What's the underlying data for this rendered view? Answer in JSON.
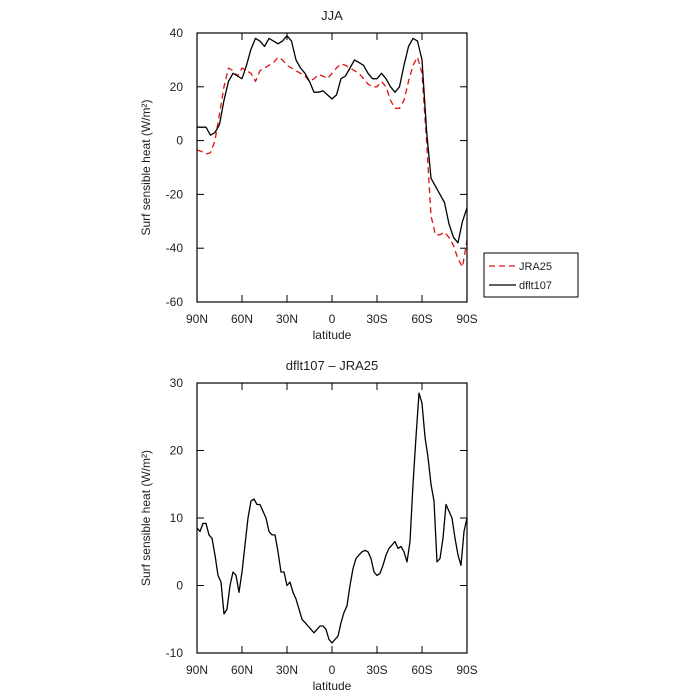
{
  "chart_data": [
    {
      "type": "line",
      "title": "JJA",
      "xlabel": "latitude",
      "ylabel": "Surf sensible heat (W/m²)",
      "xlim": [
        90,
        -90
      ],
      "ylim": [
        -60,
        40
      ],
      "yticks": [
        -60,
        -40,
        -20,
        0,
        20,
        40
      ],
      "xticks": [
        {
          "value": 90,
          "label": "90N"
        },
        {
          "value": 60,
          "label": "60N"
        },
        {
          "value": 30,
          "label": "30N"
        },
        {
          "value": 0,
          "label": "0"
        },
        {
          "value": -30,
          "label": "30S"
        },
        {
          "value": -60,
          "label": "60S"
        },
        {
          "value": -90,
          "label": "90S"
        }
      ],
      "legend": {
        "position": "right",
        "entries": [
          "JRA25",
          "dflt107"
        ]
      },
      "series": [
        {
          "name": "JRA25",
          "color": "#e01010",
          "dashed": true,
          "points": [
            [
              90,
              -3.5
            ],
            [
              87,
              -4
            ],
            [
              84,
              -5
            ],
            [
              81,
              -4.5
            ],
            [
              78,
              0
            ],
            [
              75,
              10
            ],
            [
              72,
              20
            ],
            [
              69,
              27
            ],
            [
              66,
              26
            ],
            [
              63,
              24
            ],
            [
              60,
              27
            ],
            [
              57,
              26
            ],
            [
              54,
              25
            ],
            [
              51,
              22
            ],
            [
              48,
              26
            ],
            [
              45,
              27
            ],
            [
              42,
              28
            ],
            [
              39,
              29
            ],
            [
              36,
              31
            ],
            [
              33,
              30
            ],
            [
              30,
              28
            ],
            [
              27,
              27
            ],
            [
              24,
              26
            ],
            [
              21,
              25
            ],
            [
              18,
              24
            ],
            [
              15,
              22
            ],
            [
              12,
              23
            ],
            [
              9,
              24.5
            ],
            [
              6,
              24
            ],
            [
              3,
              23
            ],
            [
              0,
              25
            ],
            [
              -3,
              27
            ],
            [
              -6,
              28.5
            ],
            [
              -9,
              28
            ],
            [
              -12,
              27
            ],
            [
              -15,
              26
            ],
            [
              -18,
              25
            ],
            [
              -21,
              23
            ],
            [
              -24,
              21
            ],
            [
              -27,
              20
            ],
            [
              -30,
              20
            ],
            [
              -33,
              22
            ],
            [
              -36,
              20
            ],
            [
              -39,
              15
            ],
            [
              -42,
              12
            ],
            [
              -45,
              12
            ],
            [
              -48,
              15
            ],
            [
              -51,
              22
            ],
            [
              -54,
              28
            ],
            [
              -57,
              31
            ],
            [
              -60,
              25
            ],
            [
              -63,
              0
            ],
            [
              -66,
              -28
            ],
            [
              -69,
              -35
            ],
            [
              -72,
              -35
            ],
            [
              -75,
              -34
            ],
            [
              -78,
              -36
            ],
            [
              -81,
              -39
            ],
            [
              -84,
              -44
            ],
            [
              -87,
              -47
            ],
            [
              -90,
              -37
            ]
          ]
        },
        {
          "name": "dflt107",
          "color": "#000000",
          "dashed": false,
          "points": [
            [
              90,
              5
            ],
            [
              87,
              5
            ],
            [
              84,
              5
            ],
            [
              81,
              2
            ],
            [
              78,
              3
            ],
            [
              75,
              6
            ],
            [
              72,
              15
            ],
            [
              69,
              22
            ],
            [
              66,
              25
            ],
            [
              63,
              24
            ],
            [
              60,
              23
            ],
            [
              57,
              28
            ],
            [
              54,
              34
            ],
            [
              51,
              38
            ],
            [
              48,
              37
            ],
            [
              45,
              35
            ],
            [
              42,
              38
            ],
            [
              39,
              37
            ],
            [
              36,
              36
            ],
            [
              33,
              37
            ],
            [
              30,
              39
            ],
            [
              27,
              37
            ],
            [
              24,
              30
            ],
            [
              21,
              27
            ],
            [
              18,
              25
            ],
            [
              15,
              22
            ],
            [
              12,
              18
            ],
            [
              9,
              18
            ],
            [
              6,
              18.5
            ],
            [
              3,
              17
            ],
            [
              0,
              15.5
            ],
            [
              -3,
              17
            ],
            [
              -6,
              23
            ],
            [
              -9,
              24
            ],
            [
              -12,
              27
            ],
            [
              -15,
              30
            ],
            [
              -18,
              29
            ],
            [
              -21,
              28
            ],
            [
              -24,
              25
            ],
            [
              -27,
              23
            ],
            [
              -30,
              23
            ],
            [
              -33,
              25
            ],
            [
              -36,
              23
            ],
            [
              -39,
              20
            ],
            [
              -42,
              18
            ],
            [
              -45,
              20
            ],
            [
              -48,
              28
            ],
            [
              -51,
              35
            ],
            [
              -54,
              38
            ],
            [
              -57,
              37
            ],
            [
              -60,
              30
            ],
            [
              -63,
              4
            ],
            [
              -66,
              -14
            ],
            [
              -69,
              -17
            ],
            [
              -72,
              -20
            ],
            [
              -75,
              -23
            ],
            [
              -78,
              -31
            ],
            [
              -81,
              -36
            ],
            [
              -84,
              -38
            ],
            [
              -87,
              -30
            ],
            [
              -90,
              -25
            ]
          ]
        }
      ]
    },
    {
      "type": "line",
      "title": "dflt107 – JRA25",
      "xlabel": "latitude",
      "ylabel": "Surf sensible heat (W/m²)",
      "xlim": [
        90,
        -90
      ],
      "ylim": [
        -10,
        30
      ],
      "yticks": [
        -10,
        0,
        10,
        20,
        30
      ],
      "xticks": [
        {
          "value": 90,
          "label": "90N"
        },
        {
          "value": 60,
          "label": "60N"
        },
        {
          "value": 30,
          "label": "30N"
        },
        {
          "value": 0,
          "label": "0"
        },
        {
          "value": -30,
          "label": "30S"
        },
        {
          "value": -60,
          "label": "60S"
        },
        {
          "value": -90,
          "label": "90S"
        }
      ],
      "series": [
        {
          "color": "#000000",
          "dashed": false,
          "points": [
            [
              90,
              8.5
            ],
            [
              88,
              8
            ],
            [
              86,
              9.2
            ],
            [
              84,
              9.2
            ],
            [
              82,
              7.5
            ],
            [
              80,
              7
            ],
            [
              78,
              4.5
            ],
            [
              76,
              1.5
            ],
            [
              74,
              0.5
            ],
            [
              72,
              -4.2
            ],
            [
              70,
              -3.5
            ],
            [
              68,
              0
            ],
            [
              66,
              2
            ],
            [
              64,
              1.5
            ],
            [
              62,
              -1
            ],
            [
              60,
              2
            ],
            [
              58,
              6
            ],
            [
              56,
              10
            ],
            [
              54,
              12.5
            ],
            [
              52,
              12.8
            ],
            [
              50,
              12
            ],
            [
              48,
              12
            ],
            [
              46,
              11
            ],
            [
              44,
              10
            ],
            [
              42,
              8
            ],
            [
              40,
              7.5
            ],
            [
              38,
              7.5
            ],
            [
              36,
              5
            ],
            [
              34,
              2
            ],
            [
              32,
              2
            ],
            [
              30,
              0
            ],
            [
              28,
              0.5
            ],
            [
              26,
              -1
            ],
            [
              24,
              -2
            ],
            [
              22,
              -3.5
            ],
            [
              20,
              -5
            ],
            [
              18,
              -5.5
            ],
            [
              16,
              -6
            ],
            [
              14,
              -6.5
            ],
            [
              12,
              -7
            ],
            [
              10,
              -6.5
            ],
            [
              8,
              -6
            ],
            [
              6,
              -6
            ],
            [
              4,
              -6.5
            ],
            [
              2,
              -8
            ],
            [
              0,
              -8.5
            ],
            [
              -2,
              -8
            ],
            [
              -4,
              -7.5
            ],
            [
              -6,
              -5.5
            ],
            [
              -8,
              -4
            ],
            [
              -10,
              -3
            ],
            [
              -12,
              0
            ],
            [
              -14,
              2.5
            ],
            [
              -16,
              4
            ],
            [
              -18,
              4.5
            ],
            [
              -20,
              5
            ],
            [
              -22,
              5.2
            ],
            [
              -24,
              5
            ],
            [
              -26,
              4
            ],
            [
              -28,
              2
            ],
            [
              -30,
              1.5
            ],
            [
              -32,
              1.8
            ],
            [
              -34,
              3
            ],
            [
              -36,
              4.5
            ],
            [
              -38,
              5.5
            ],
            [
              -40,
              6
            ],
            [
              -42,
              6.5
            ],
            [
              -44,
              5.5
            ],
            [
              -46,
              5.8
            ],
            [
              -48,
              5
            ],
            [
              -50,
              3.5
            ],
            [
              -52,
              6.5
            ],
            [
              -54,
              15
            ],
            [
              -56,
              22
            ],
            [
              -58,
              28.5
            ],
            [
              -60,
              27
            ],
            [
              -62,
              22
            ],
            [
              -64,
              19
            ],
            [
              -66,
              15
            ],
            [
              -68,
              12.5
            ],
            [
              -70,
              3.5
            ],
            [
              -72,
              4
            ],
            [
              -74,
              7
            ],
            [
              -76,
              12
            ],
            [
              -78,
              11
            ],
            [
              -80,
              10
            ],
            [
              -82,
              7
            ],
            [
              -84,
              4.5
            ],
            [
              -86,
              3
            ],
            [
              -88,
              8
            ],
            [
              -90,
              10
            ]
          ]
        }
      ]
    }
  ]
}
